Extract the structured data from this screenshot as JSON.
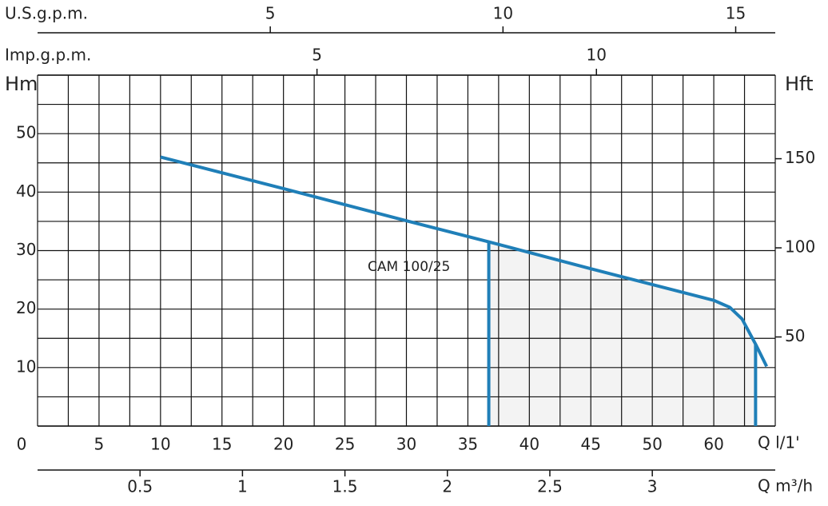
{
  "chart_data": {
    "type": "line",
    "x_axis_label": "Q l/1'",
    "y_axis_label": "Hm",
    "y2_axis_label": "Hft",
    "xlim": [
      0,
      60
    ],
    "x_labels": [
      "0",
      "5",
      "10",
      "15",
      "20",
      "25",
      "30",
      "35",
      "40",
      "45",
      "50",
      "60"
    ],
    "ylim": [
      0,
      60
    ],
    "yticks": [
      10,
      20,
      30,
      40,
      50
    ],
    "y2lim": [
      0,
      196.9
    ],
    "y2ticks": [
      50,
      100,
      150
    ],
    "grid": true,
    "us_gpm": {
      "label": "U.S.g.p.m.",
      "xlim": [
        0,
        15.85
      ],
      "xticks": [
        5,
        10,
        15
      ]
    },
    "imp_gpm": {
      "label": "Imp.g.p.m.",
      "xlim": [
        0,
        13.2
      ],
      "xticks": [
        5,
        10
      ]
    },
    "m3h": {
      "label": "Q m³/h",
      "xlim": [
        0,
        3.6
      ],
      "xticks": [
        0.5,
        1,
        1.5,
        2,
        2.5,
        3
      ]
    },
    "series": [
      {
        "name": "CAM 100/25",
        "color": "#1f7fb8",
        "x": [
          10,
          20,
          30,
          36.7,
          45,
          55,
          56.3,
          57.3,
          58.4,
          59.3
        ],
        "values": [
          46,
          40.6,
          35.1,
          31.5,
          26.9,
          21.5,
          20.3,
          18.3,
          14,
          10.2
        ]
      }
    ],
    "operating_range": [
      36.7,
      58.4
    ]
  }
}
